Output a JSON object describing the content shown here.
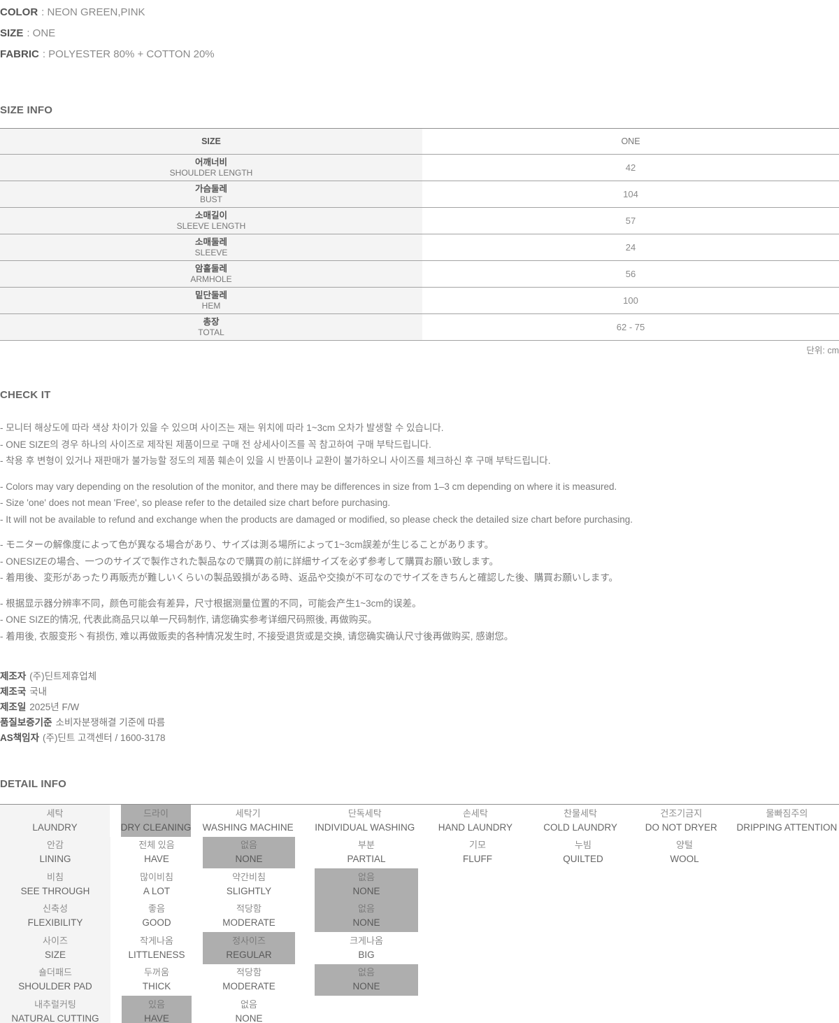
{
  "product": {
    "lines": [
      {
        "label": "COLOR",
        "value": ": NEON GREEN,PINK"
      },
      {
        "label": "SIZE",
        "value": ": ONE"
      },
      {
        "label": "FABRIC",
        "value": ": POLYESTER 80% + COTTON 20%"
      }
    ]
  },
  "size_info": {
    "heading": "SIZE INFO",
    "header": {
      "size": "SIZE",
      "one": "ONE"
    },
    "rows": [
      {
        "kr": "어깨너비",
        "en": "SHOULDER LENGTH",
        "value": "42"
      },
      {
        "kr": "가슴둘레",
        "en": "BUST",
        "value": "104"
      },
      {
        "kr": "소매길이",
        "en": "SLEEVE LENGTH",
        "value": "57"
      },
      {
        "kr": "소매둘레",
        "en": "SLEEVE",
        "value": "24"
      },
      {
        "kr": "암홀둘레",
        "en": "ARMHOLE",
        "value": "56"
      },
      {
        "kr": "밑단둘레",
        "en": "HEM",
        "value": "100"
      },
      {
        "kr": "총장",
        "en": "TOTAL",
        "value": "62 - 75"
      }
    ],
    "unit_note": "단위: cm"
  },
  "check_it": {
    "heading": "CHECK IT",
    "blocks": [
      {
        "lines": [
          "- 모니터 해상도에 따라 색상 차이가 있을 수 있으며 사이즈는 재는 위치에 따라 1~3cm 오차가 발생할 수 있습니다.",
          "- ONE SIZE의 경우 하나의 사이즈로 제작된 제품이므로 구매 전 상세사이즈를 꼭 참고하여 구매 부탁드립니다.",
          "- 착용 후 변형이 있거나 재판매가 불가능할 정도의 제품 훼손이 있을 시 반품이나 교환이 불가하오니 사이즈를 체크하신 후 구매 부탁드립니다."
        ]
      },
      {
        "lines": [
          "- Colors may vary depending on the resolution of the monitor, and there may be differences in size from 1–3 cm depending on where it is measured.",
          "- Size 'one' does not mean 'Free', so please refer to the detailed size chart before purchasing.",
          "- It will not be available to refund and exchange when the products are damaged or modified, so please check the detailed size chart before purchasing."
        ]
      },
      {
        "lines": [
          "- モニターの解像度によって色が異なる場合があり、サイズは測る場所によって1~3cm誤差が生じることがあります。",
          "- ONESIZEの場合、一つのサイズで製作された製品なので購買の前に詳細サイズを必ず参考して購買お願い致します。",
          "- 着用後、変形があったり再販売が難しいくらいの製品毀損がある時、返品や交換が不可なのでサイズをきちんと確認した後、購買お願いします。"
        ]
      },
      {
        "lines": [
          "- 根据显示器分辨率不同，颜色可能会有差异，尺寸根据测量位置的不同，可能会产生1~3cm的误差。",
          "- ONE SIZE的情况, 代表此商品只以单一尺码制作, 请您确实参考详细尺码照後, 再做购买。",
          "- 着用後, 衣服变形丶有损伤, 难以再做贩卖的各种情况发生时, 不接受退货或是交换, 请您确实确认尺寸後再做购买, 感谢您。"
        ]
      }
    ]
  },
  "manufacturer": {
    "rows": [
      {
        "label": "제조자",
        "value": "(주)딘트제휴업체"
      },
      {
        "label": "제조국",
        "value": "국내"
      },
      {
        "label": "제조일",
        "value": "2025년 F/W"
      },
      {
        "label": "품질보증기준",
        "value": "소비자분쟁해결 기준에 따름"
      },
      {
        "label": "AS책임자",
        "value": "(주)딘트 고객센터 / 1600-3178"
      }
    ]
  },
  "detail_info": {
    "heading": "DETAIL INFO",
    "colors": {
      "highlight": "#aeaeae",
      "label_bg": "#f4f4f4"
    },
    "rows": [
      {
        "label": {
          "kr": "세탁",
          "en": "LAUNDRY"
        },
        "options": [
          {
            "kr": "드라이",
            "en": "DRY CLEANING",
            "checked": true
          },
          {
            "kr": "세탁기",
            "en": "WASHING MACHINE",
            "checked": false
          },
          {
            "kr": "단독세탁",
            "en": "INDIVIDUAL WASHING",
            "checked": false
          },
          {
            "kr": "손세탁",
            "en": "HAND LAUNDRY",
            "checked": false
          },
          {
            "kr": "찬물세탁",
            "en": "COLD LAUNDRY",
            "checked": false
          },
          {
            "kr": "건조기금지",
            "en": "DO NOT DRYER",
            "checked": false
          },
          {
            "kr": "물빠짐주의",
            "en": "DRIPPING ATTENTION",
            "checked": false
          }
        ]
      },
      {
        "label": {
          "kr": "안감",
          "en": "LINING"
        },
        "options": [
          {
            "kr": "전체 있음",
            "en": "HAVE",
            "checked": false
          },
          {
            "kr": "없음",
            "en": "NONE",
            "checked": true
          },
          {
            "kr": "부분",
            "en": "PARTIAL",
            "checked": false
          },
          {
            "kr": "기모",
            "en": "FLUFF",
            "checked": false
          },
          {
            "kr": "누빔",
            "en": "QUILTED",
            "checked": false
          },
          {
            "kr": "양털",
            "en": "WOOL",
            "checked": false
          }
        ]
      },
      {
        "label": {
          "kr": "비침",
          "en": "SEE THROUGH"
        },
        "options": [
          {
            "kr": "많이비침",
            "en": "A LOT",
            "checked": false
          },
          {
            "kr": "약간비침",
            "en": "SLIGHTLY",
            "checked": false
          },
          {
            "kr": "없음",
            "en": "NONE",
            "checked": true
          }
        ]
      },
      {
        "label": {
          "kr": "신축성",
          "en": "FLEXIBILITY"
        },
        "options": [
          {
            "kr": "좋음",
            "en": "GOOD",
            "checked": false
          },
          {
            "kr": "적당함",
            "en": "MODERATE",
            "checked": false
          },
          {
            "kr": "없음",
            "en": "NONE",
            "checked": true
          }
        ]
      },
      {
        "label": {
          "kr": "사이즈",
          "en": "SIZE"
        },
        "options": [
          {
            "kr": "작게나옴",
            "en": "LITTLENESS",
            "checked": false
          },
          {
            "kr": "정사이즈",
            "en": "REGULAR",
            "checked": true
          },
          {
            "kr": "크게나옴",
            "en": "BIG",
            "checked": false
          }
        ]
      },
      {
        "label": {
          "kr": "숄더패드",
          "en": "SHOULDER PAD"
        },
        "options": [
          {
            "kr": "두꺼움",
            "en": "THICK",
            "checked": false
          },
          {
            "kr": "적당함",
            "en": "MODERATE",
            "checked": false
          },
          {
            "kr": "없음",
            "en": "NONE",
            "checked": true
          }
        ]
      },
      {
        "label": {
          "kr": "내추럴커팅",
          "en": "NATURAL CUTTING"
        },
        "options": [
          {
            "kr": "있음",
            "en": "HAVE",
            "checked": true
          },
          {
            "kr": "없음",
            "en": "NONE",
            "checked": false
          }
        ]
      }
    ]
  }
}
